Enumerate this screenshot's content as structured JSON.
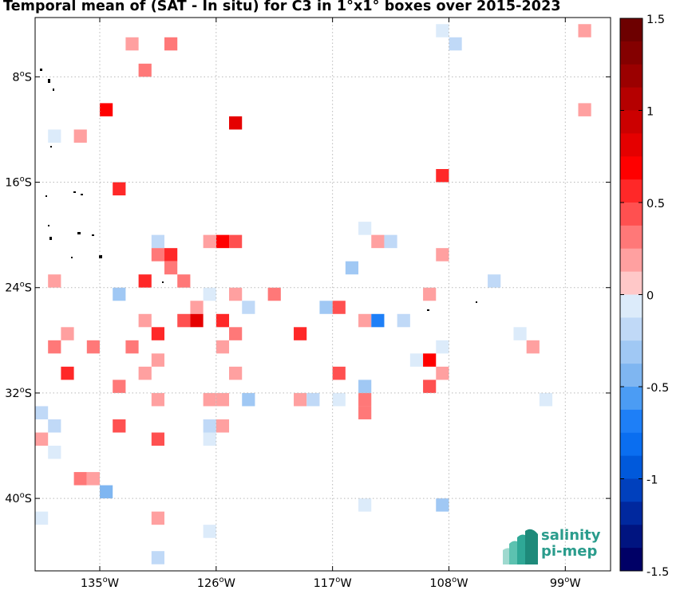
{
  "chart_data": {
    "type": "heatmap",
    "title": "Temporal mean of (SAT - In situ) for C3 in 1°x1° boxes over 2015-2023",
    "x_ticks": [
      {
        "value": -135,
        "label": "135°W"
      },
      {
        "value": -126,
        "label": "126°W"
      },
      {
        "value": -117,
        "label": "117°W"
      },
      {
        "value": -108,
        "label": "108°W"
      },
      {
        "value": -99,
        "label": "99°W"
      }
    ],
    "y_ticks": [
      {
        "value": -8,
        "label": "8°S"
      },
      {
        "value": -16,
        "label": "16°S"
      },
      {
        "value": -24,
        "label": "24°S"
      },
      {
        "value": -32,
        "label": "32°S"
      },
      {
        "value": -40,
        "label": "40°S"
      }
    ],
    "xlim": [
      -140,
      -95.5
    ],
    "ylim": [
      -45.5,
      -3.5
    ],
    "grid": true,
    "colorbar": {
      "range": [
        -1.5,
        1.5
      ],
      "levels": 24,
      "ticks": [
        1.5,
        1,
        0.5,
        0,
        -0.5,
        -1,
        -1.5
      ],
      "tick_labels": [
        "1.5",
        "1",
        "0.5",
        "0",
        "-0.5",
        "-1",
        "-1.5"
      ],
      "colors_top_to_bottom": [
        "#6d0000",
        "#840000",
        "#9b0000",
        "#b50000",
        "#cc0000",
        "#e50000",
        "#ff0000",
        "#ff2828",
        "#ff5050",
        "#ff7878",
        "#ffa0a0",
        "#ffc8c8",
        "#dcebfa",
        "#c0d9f7",
        "#a0c8f4",
        "#7fb6f1",
        "#4b9cf4",
        "#1e7ff7",
        "#0a6ef0",
        "#0059db",
        "#0040bd",
        "#00289e",
        "#001480",
        "#000066"
      ]
    },
    "cells": [
      {
        "lon": -132.5,
        "lat": -5.5,
        "value": 0.15
      },
      {
        "lon": -129.5,
        "lat": -5.5,
        "value": 0.35
      },
      {
        "lon": -108.5,
        "lat": -4.5,
        "value": -0.1
      },
      {
        "lon": -107.5,
        "lat": -5.5,
        "value": -0.2
      },
      {
        "lon": -97.5,
        "lat": -4.5,
        "value": 0.15
      },
      {
        "lon": -131.5,
        "lat": -7.5,
        "value": 0.25
      },
      {
        "lon": -134.5,
        "lat": -10.5,
        "value": 0.65
      },
      {
        "lon": -124.5,
        "lat": -11.5,
        "value": 0.75
      },
      {
        "lon": -97.5,
        "lat": -10.5,
        "value": 0.15
      },
      {
        "lon": -138.5,
        "lat": -12.5,
        "value": -0.1
      },
      {
        "lon": -136.5,
        "lat": -12.5,
        "value": 0.15
      },
      {
        "lon": -108.5,
        "lat": -15.5,
        "value": 0.5
      },
      {
        "lon": -133.5,
        "lat": -16.5,
        "value": 0.5
      },
      {
        "lon": -114.5,
        "lat": -19.5,
        "value": -0.1
      },
      {
        "lon": -130.5,
        "lat": -20.5,
        "value": -0.25
      },
      {
        "lon": -126.5,
        "lat": -20.5,
        "value": 0.15
      },
      {
        "lon": -125.5,
        "lat": -20.5,
        "value": 0.65
      },
      {
        "lon": -124.5,
        "lat": -20.5,
        "value": 0.45
      },
      {
        "lon": -113.5,
        "lat": -20.5,
        "value": 0.15
      },
      {
        "lon": -112.5,
        "lat": -20.5,
        "value": -0.2
      },
      {
        "lon": -130.5,
        "lat": -21.5,
        "value": 0.25
      },
      {
        "lon": -129.5,
        "lat": -21.5,
        "value": 0.55
      },
      {
        "lon": -108.5,
        "lat": -21.5,
        "value": 0.15
      },
      {
        "lon": -129.5,
        "lat": -22.5,
        "value": 0.25
      },
      {
        "lon": -115.5,
        "lat": -22.5,
        "value": -0.3
      },
      {
        "lon": -138.5,
        "lat": -23.5,
        "value": 0.2
      },
      {
        "lon": -131.5,
        "lat": -23.5,
        "value": 0.5
      },
      {
        "lon": -128.5,
        "lat": -23.5,
        "value": 0.35
      },
      {
        "lon": -104.5,
        "lat": -23.5,
        "value": -0.25
      },
      {
        "lon": -133.5,
        "lat": -24.5,
        "value": -0.3
      },
      {
        "lon": -126.5,
        "lat": -24.5,
        "value": -0.1
      },
      {
        "lon": -124.5,
        "lat": -24.5,
        "value": 0.15
      },
      {
        "lon": -121.5,
        "lat": -24.5,
        "value": 0.3
      },
      {
        "lon": -109.5,
        "lat": -24.5,
        "value": 0.15
      },
      {
        "lon": -127.5,
        "lat": -25.5,
        "value": 0.2
      },
      {
        "lon": -123.5,
        "lat": -25.5,
        "value": -0.2
      },
      {
        "lon": -117.5,
        "lat": -25.5,
        "value": -0.35
      },
      {
        "lon": -116.5,
        "lat": -25.5,
        "value": 0.4
      },
      {
        "lon": -131.5,
        "lat": -26.5,
        "value": 0.15
      },
      {
        "lon": -128.5,
        "lat": -26.5,
        "value": 0.45
      },
      {
        "lon": -127.5,
        "lat": -26.5,
        "value": 0.75
      },
      {
        "lon": -125.5,
        "lat": -26.5,
        "value": 0.55
      },
      {
        "lon": -114.5,
        "lat": -26.5,
        "value": 0.2
      },
      {
        "lon": -113.5,
        "lat": -26.5,
        "value": -0.7
      },
      {
        "lon": -111.5,
        "lat": -26.5,
        "value": -0.25
      },
      {
        "lon": -137.5,
        "lat": -27.5,
        "value": 0.15
      },
      {
        "lon": -130.5,
        "lat": -27.5,
        "value": 0.55
      },
      {
        "lon": -124.5,
        "lat": -27.5,
        "value": 0.25
      },
      {
        "lon": -119.5,
        "lat": -27.5,
        "value": 0.55
      },
      {
        "lon": -102.5,
        "lat": -27.5,
        "value": -0.1
      },
      {
        "lon": -138.5,
        "lat": -28.5,
        "value": 0.25
      },
      {
        "lon": -135.5,
        "lat": -28.5,
        "value": 0.35
      },
      {
        "lon": -132.5,
        "lat": -28.5,
        "value": 0.25
      },
      {
        "lon": -125.5,
        "lat": -28.5,
        "value": 0.2
      },
      {
        "lon": -108.5,
        "lat": -28.5,
        "value": -0.1
      },
      {
        "lon": -101.5,
        "lat": -28.5,
        "value": 0.15
      },
      {
        "lon": -130.5,
        "lat": -29.5,
        "value": 0.15
      },
      {
        "lon": -110.5,
        "lat": -29.5,
        "value": -0.1
      },
      {
        "lon": -109.5,
        "lat": -29.5,
        "value": 0.65
      },
      {
        "lon": -137.5,
        "lat": -30.5,
        "value": 0.55
      },
      {
        "lon": -131.5,
        "lat": -30.5,
        "value": 0.15
      },
      {
        "lon": -124.5,
        "lat": -30.5,
        "value": 0.15
      },
      {
        "lon": -116.5,
        "lat": -30.5,
        "value": 0.45
      },
      {
        "lon": -108.5,
        "lat": -30.5,
        "value": 0.15
      },
      {
        "lon": -133.5,
        "lat": -31.5,
        "value": 0.25
      },
      {
        "lon": -114.5,
        "lat": -31.5,
        "value": -0.3
      },
      {
        "lon": -109.5,
        "lat": -31.5,
        "value": 0.45
      },
      {
        "lon": -130.5,
        "lat": -32.5,
        "value": 0.15
      },
      {
        "lon": -126.5,
        "lat": -32.5,
        "value": 0.15
      },
      {
        "lon": -125.5,
        "lat": -32.5,
        "value": 0.15
      },
      {
        "lon": -123.5,
        "lat": -32.5,
        "value": -0.3
      },
      {
        "lon": -119.5,
        "lat": -32.5,
        "value": 0.15
      },
      {
        "lon": -118.5,
        "lat": -32.5,
        "value": -0.2
      },
      {
        "lon": -116.5,
        "lat": -32.5,
        "value": -0.1
      },
      {
        "lon": -114.5,
        "lat": -32.5,
        "value": 0.25
      },
      {
        "lon": -100.5,
        "lat": -32.5,
        "value": -0.1
      },
      {
        "lon": -139.5,
        "lat": -33.5,
        "value": -0.2
      },
      {
        "lon": -114.5,
        "lat": -33.5,
        "value": 0.25
      },
      {
        "lon": -138.5,
        "lat": -34.5,
        "value": -0.2
      },
      {
        "lon": -133.5,
        "lat": -34.5,
        "value": 0.4
      },
      {
        "lon": -126.5,
        "lat": -34.5,
        "value": -0.25
      },
      {
        "lon": -125.5,
        "lat": -34.5,
        "value": 0.15
      },
      {
        "lon": -139.5,
        "lat": -35.5,
        "value": 0.2
      },
      {
        "lon": -130.5,
        "lat": -35.5,
        "value": 0.4
      },
      {
        "lon": -126.5,
        "lat": -35.5,
        "value": -0.1
      },
      {
        "lon": -138.5,
        "lat": -36.5,
        "value": -0.1
      },
      {
        "lon": -136.5,
        "lat": -38.5,
        "value": 0.3
      },
      {
        "lon": -135.5,
        "lat": -38.5,
        "value": 0.2
      },
      {
        "lon": -134.5,
        "lat": -39.5,
        "value": -0.45
      },
      {
        "lon": -114.5,
        "lat": -40.5,
        "value": -0.1
      },
      {
        "lon": -108.5,
        "lat": -40.5,
        "value": -0.3
      },
      {
        "lon": -139.5,
        "lat": -41.5,
        "value": -0.1
      },
      {
        "lon": -130.5,
        "lat": -41.5,
        "value": 0.15
      },
      {
        "lon": -126.5,
        "lat": -42.5,
        "value": -0.1
      },
      {
        "lon": -130.5,
        "lat": -44.5,
        "value": -0.2
      }
    ]
  },
  "logo": {
    "line1": "salinity",
    "line2": "pi-mep"
  }
}
